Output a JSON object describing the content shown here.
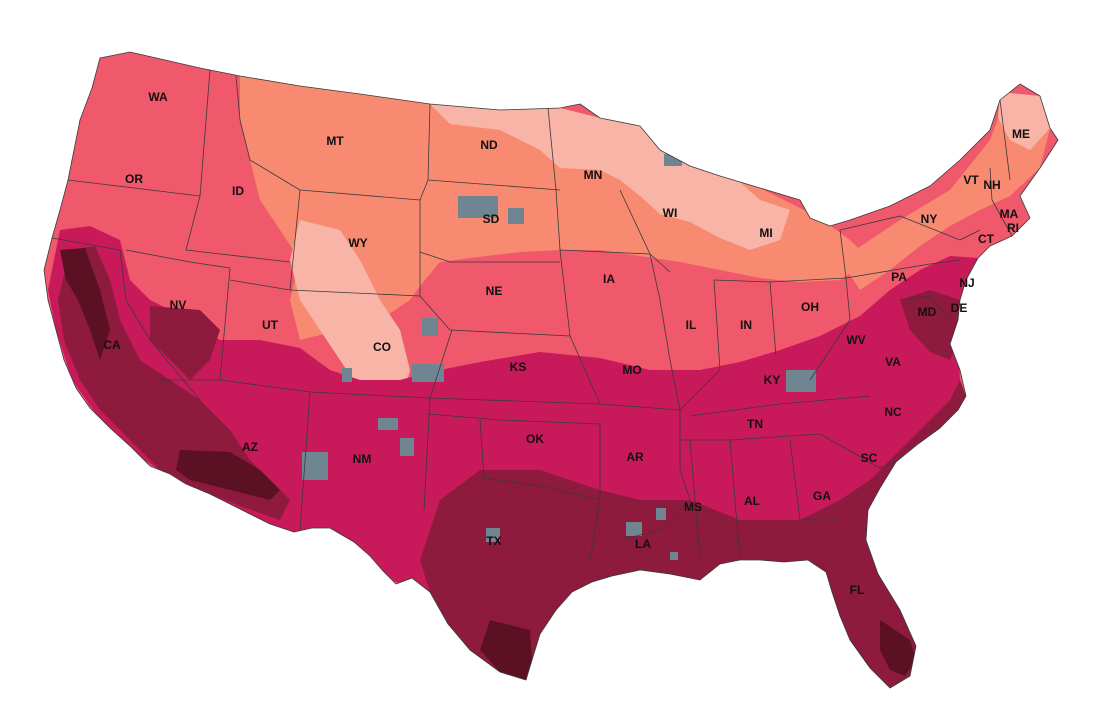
{
  "map": {
    "type": "choropleth",
    "region": "Contiguous United States (county level)",
    "palette": {
      "class_1": "#f8b4a6",
      "class_2": "#f88a72",
      "class_3": "#f0586c",
      "class_4": "#c81a5a",
      "class_5": "#8e1a3e",
      "class_6": "#5c1024",
      "no_data": "#6f8592",
      "border": "#3a3a3a",
      "water": "#ffffff"
    },
    "state_labels": [
      {
        "abbr": "WA"
      },
      {
        "abbr": "OR"
      },
      {
        "abbr": "CA"
      },
      {
        "abbr": "ID"
      },
      {
        "abbr": "NV"
      },
      {
        "abbr": "MT"
      },
      {
        "abbr": "WY"
      },
      {
        "abbr": "UT"
      },
      {
        "abbr": "AZ"
      },
      {
        "abbr": "CO"
      },
      {
        "abbr": "NM"
      },
      {
        "abbr": "ND"
      },
      {
        "abbr": "SD"
      },
      {
        "abbr": "NE"
      },
      {
        "abbr": "KS"
      },
      {
        "abbr": "OK"
      },
      {
        "abbr": "TX"
      },
      {
        "abbr": "MN"
      },
      {
        "abbr": "IA"
      },
      {
        "abbr": "MO"
      },
      {
        "abbr": "AR"
      },
      {
        "abbr": "LA"
      },
      {
        "abbr": "WI"
      },
      {
        "abbr": "IL"
      },
      {
        "abbr": "MI"
      },
      {
        "abbr": "IN"
      },
      {
        "abbr": "OH"
      },
      {
        "abbr": "KY"
      },
      {
        "abbr": "TN"
      },
      {
        "abbr": "MS"
      },
      {
        "abbr": "AL"
      },
      {
        "abbr": "GA"
      },
      {
        "abbr": "FL"
      },
      {
        "abbr": "SC"
      },
      {
        "abbr": "NC"
      },
      {
        "abbr": "VA"
      },
      {
        "abbr": "WV"
      },
      {
        "abbr": "PA"
      },
      {
        "abbr": "NY"
      },
      {
        "abbr": "MD"
      },
      {
        "abbr": "DE"
      },
      {
        "abbr": "NJ"
      },
      {
        "abbr": "CT"
      },
      {
        "abbr": "RI"
      },
      {
        "abbr": "MA"
      },
      {
        "abbr": "VT"
      },
      {
        "abbr": "NH"
      },
      {
        "abbr": "ME"
      }
    ]
  }
}
